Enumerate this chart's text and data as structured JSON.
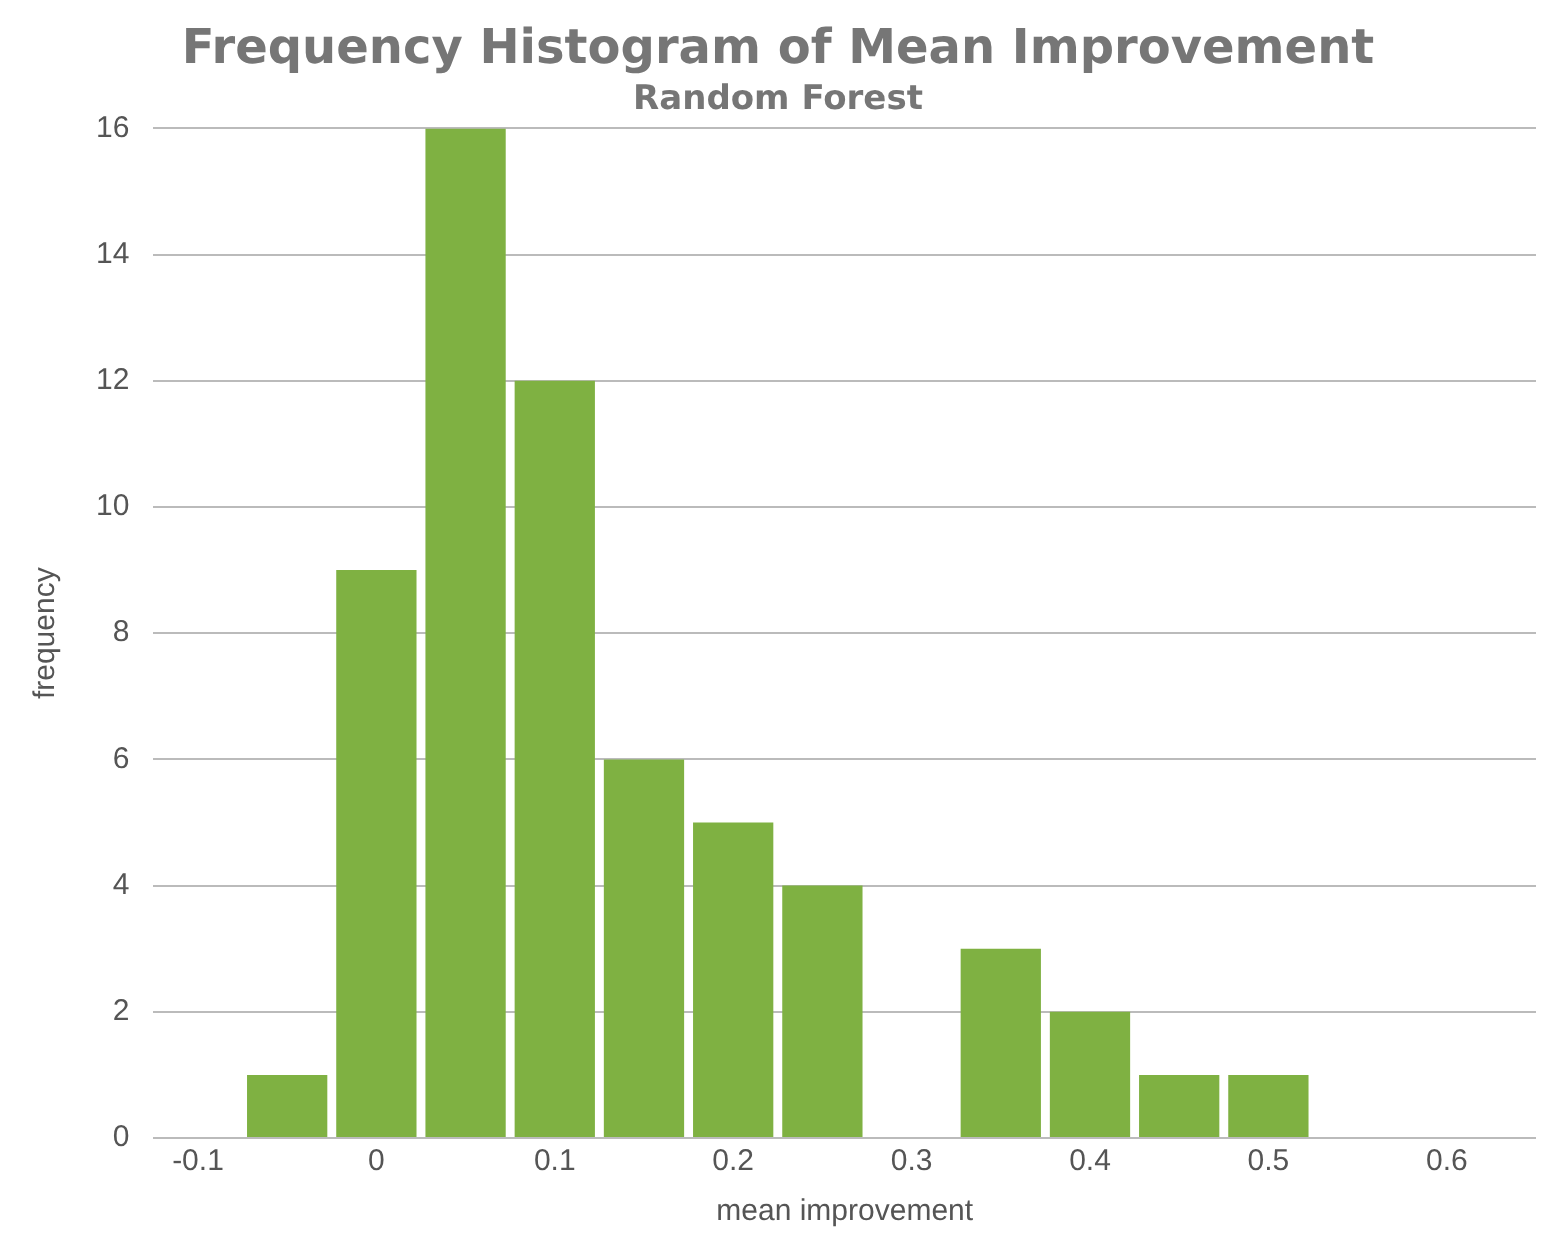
{
  "chart_data": {
    "type": "histogram",
    "title": "Frequency Histogram of Mean Improvement",
    "subtitle": "Random Forest",
    "xlabel": "mean improvement",
    "ylabel": "frequency",
    "bins": [
      -0.075,
      -0.025,
      0.025,
      0.075,
      0.125,
      0.175,
      0.225,
      0.275,
      0.325,
      0.375,
      0.425,
      0.475,
      0.525
    ],
    "values": [
      1,
      9,
      16,
      12,
      6,
      5,
      4,
      0,
      3,
      2,
      1,
      1
    ],
    "color": "#7fb142",
    "xlim": [
      -0.125,
      0.65
    ],
    "xticks": [
      -0.1,
      0,
      0.1,
      0.2,
      0.3,
      0.4,
      0.5,
      0.6
    ],
    "ylim": [
      0,
      16
    ],
    "yticks": [
      0,
      2,
      4,
      6,
      8,
      10,
      12,
      14,
      16
    ],
    "grid": "y"
  }
}
